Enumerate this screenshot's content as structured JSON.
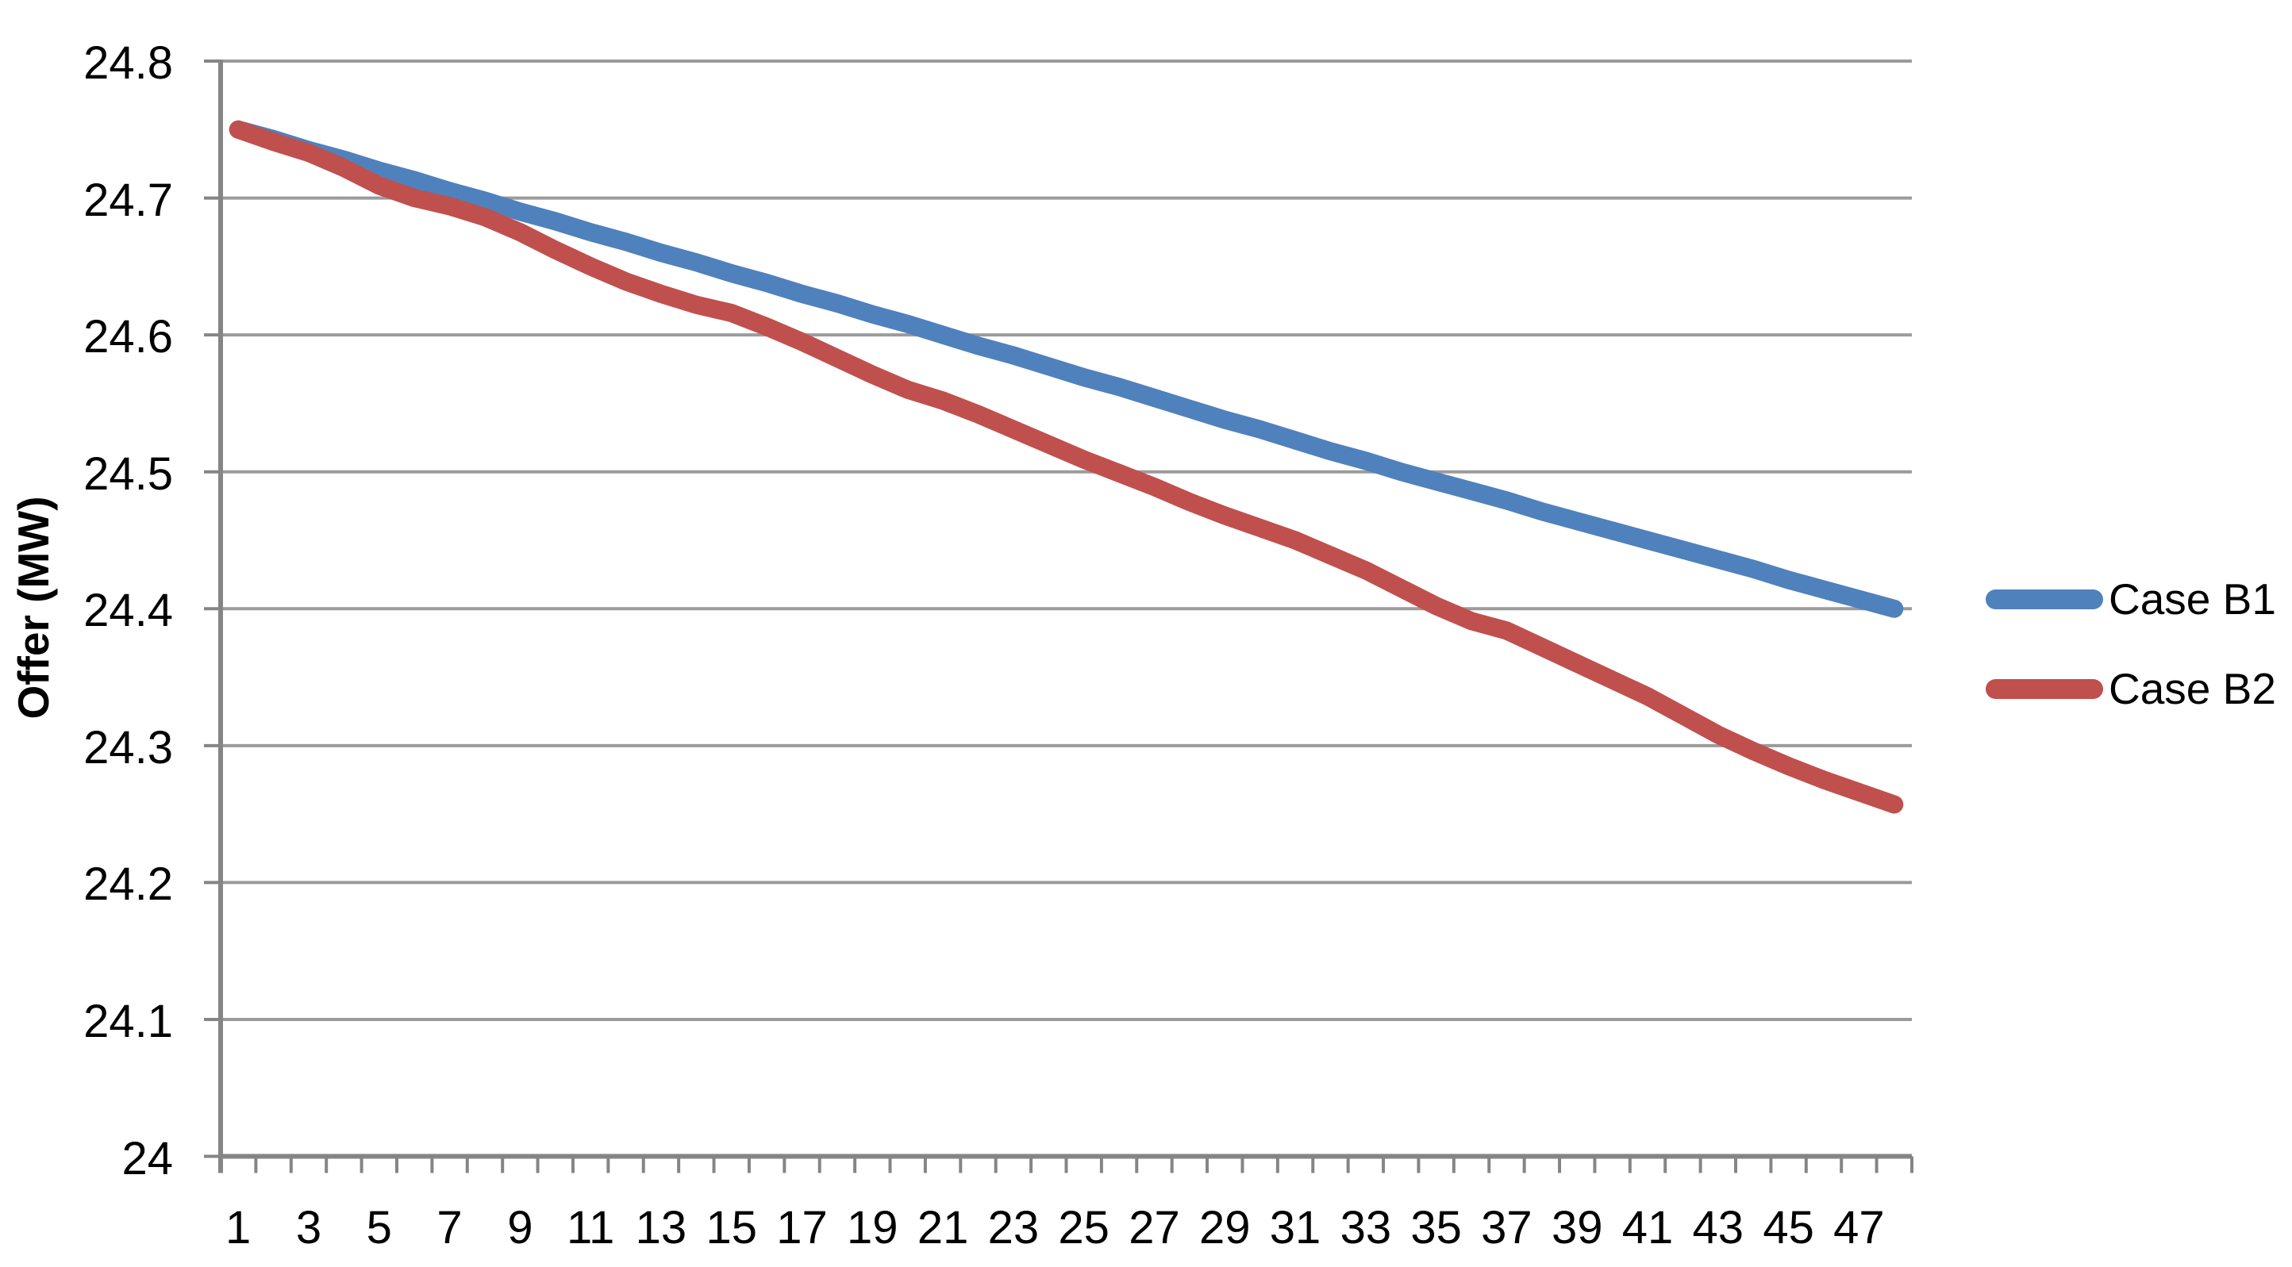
{
  "chart_data": {
    "type": "line",
    "title": "",
    "xlabel": "",
    "ylabel": "Offer (MW)",
    "ylim": [
      24.0,
      24.8
    ],
    "grid": "horizontal-only",
    "legend_position": "right-middle",
    "x": [
      1,
      2,
      3,
      4,
      5,
      6,
      7,
      8,
      9,
      10,
      11,
      12,
      13,
      14,
      15,
      16,
      17,
      18,
      19,
      20,
      21,
      22,
      23,
      24,
      25,
      26,
      27,
      28,
      29,
      30,
      31,
      32,
      33,
      34,
      35,
      36,
      37,
      38,
      39,
      40,
      41,
      42,
      43,
      44,
      45,
      46,
      47,
      48
    ],
    "x_tick_labels": [
      "1",
      "3",
      "5",
      "7",
      "9",
      "11",
      "13",
      "15",
      "17",
      "19",
      "21",
      "23",
      "25",
      "27",
      "29",
      "31",
      "33",
      "35",
      "37",
      "39",
      "41",
      "43",
      "45",
      "47"
    ],
    "y_ticks": [
      24.8,
      24.7,
      24.6,
      24.5,
      24.4,
      24.3,
      24.2,
      24.1,
      24.0
    ],
    "y_tick_labels": [
      "24.8",
      "24.7",
      "24.6",
      "24.5",
      "24.4",
      "24.3",
      "24.2",
      "24.1",
      "24"
    ],
    "series": [
      {
        "name": "Case B1",
        "color": "#4F81BD",
        "values": [
          24.75,
          24.743,
          24.735,
          24.728,
          24.72,
          24.713,
          24.705,
          24.698,
          24.69,
          24.683,
          24.675,
          24.668,
          24.66,
          24.653,
          24.645,
          24.638,
          24.63,
          24.623,
          24.615,
          24.608,
          24.6,
          24.592,
          24.585,
          24.577,
          24.569,
          24.562,
          24.554,
          24.546,
          24.538,
          24.531,
          24.523,
          24.515,
          24.508,
          24.5,
          24.493,
          24.486,
          24.479,
          24.471,
          24.464,
          24.457,
          24.45,
          24.443,
          24.436,
          24.429,
          24.421,
          24.414,
          24.407,
          24.4
        ]
      },
      {
        "name": "Case B2",
        "color": "#C0504D",
        "values": [
          24.75,
          24.741,
          24.733,
          24.722,
          24.709,
          24.7,
          24.694,
          24.686,
          24.675,
          24.662,
          24.65,
          24.639,
          24.63,
          24.622,
          24.616,
          24.606,
          24.595,
          24.583,
          24.571,
          24.56,
          24.552,
          24.542,
          24.531,
          24.52,
          24.509,
          24.499,
          24.489,
          24.478,
          24.468,
          24.459,
          24.45,
          24.439,
          24.428,
          24.415,
          24.402,
          24.391,
          24.384,
          24.372,
          24.36,
          24.348,
          24.336,
          24.322,
          24.308,
          24.296,
          24.285,
          24.275,
          24.266,
          24.257
        ]
      }
    ]
  },
  "axis": {
    "y_title": "Offer (MW)"
  },
  "legend": {
    "items": [
      {
        "label": "Case B1",
        "color": "#4F81BD"
      },
      {
        "label": "Case B2",
        "color": "#C0504D"
      }
    ]
  },
  "colors": {
    "background": "#FFFFFF",
    "grid": "#9B9B9B",
    "axis": "#858585",
    "text": "#000000",
    "series_b1": "#4F81BD",
    "series_b2": "#C0504D"
  }
}
